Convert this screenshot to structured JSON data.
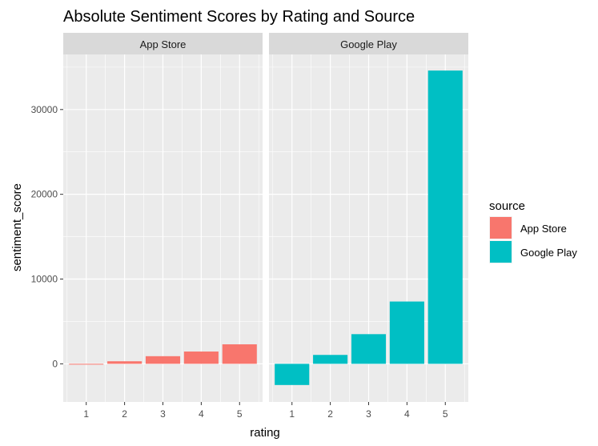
{
  "chart_data": {
    "type": "bar",
    "title": "Absolute Sentiment Scores by Rating and Source",
    "xlabel": "rating",
    "ylabel": "sentiment_score",
    "categories": [
      "1",
      "2",
      "3",
      "4",
      "5"
    ],
    "ylim": [
      -4500,
      36500
    ],
    "yticks": [
      0,
      10000,
      20000,
      30000
    ],
    "grid": true,
    "legend": {
      "title": "source",
      "position": "right"
    },
    "facets": [
      "App Store",
      "Google Play"
    ],
    "series": [
      {
        "name": "App Store",
        "color": "#F8766D",
        "values": [
          -50,
          300,
          900,
          1450,
          2300
        ]
      },
      {
        "name": "Google Play",
        "color": "#00BFC4",
        "values": [
          -2500,
          1050,
          3500,
          7350,
          34600
        ]
      }
    ]
  }
}
